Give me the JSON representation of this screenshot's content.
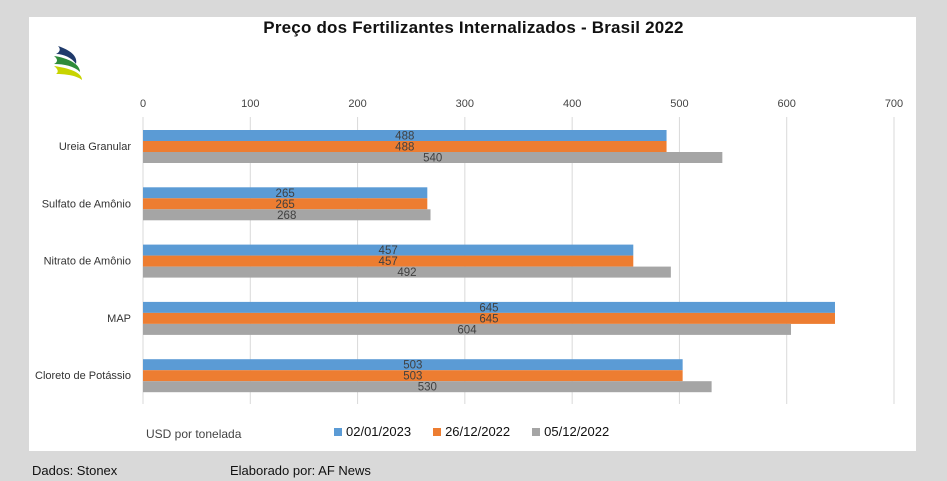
{
  "chart_data": {
    "type": "bar",
    "orientation": "horizontal",
    "title": "Preço dos Fertilizantes Internalizados  - Brasil 2022",
    "categories": [
      "Ureia Granular",
      "Sulfato de Amônio",
      "Nitrato de Amônio",
      "MAP",
      "Cloreto de Potássio"
    ],
    "series": [
      {
        "name": "02/01/2023",
        "color": "#5b9bd5",
        "values": [
          488,
          265,
          457,
          645,
          503
        ]
      },
      {
        "name": "26/12/2022",
        "color": "#ed7d31",
        "values": [
          488,
          265,
          457,
          645,
          503
        ]
      },
      {
        "name": "05/12/2022",
        "color": "#a5a5a5",
        "values": [
          540,
          268,
          492,
          604,
          530
        ]
      }
    ],
    "xlim": [
      0,
      700
    ],
    "xticks": [
      0,
      100,
      200,
      300,
      400,
      500,
      600,
      700
    ],
    "xlabel": "USD por tonelada",
    "grid": true,
    "legend": "bottom"
  },
  "footer": {
    "source": "Dados: Stonex",
    "author": "Elaborado por: AF News"
  },
  "logo": {
    "icon": "leaf-logo-icon",
    "colors": [
      "#1f3a6b",
      "#2e8b3a",
      "#c8d400"
    ]
  }
}
